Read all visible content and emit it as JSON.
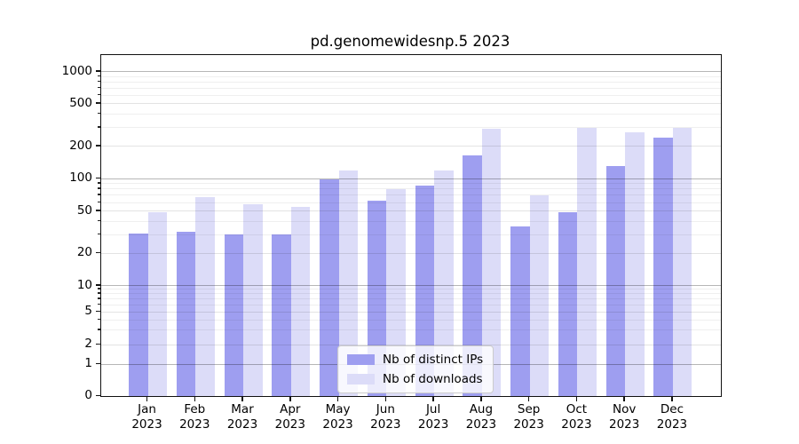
{
  "title": "pd.genomewidesnp.5 2023",
  "chart_data": {
    "type": "bar",
    "title": "pd.genomewidesnp.5 2023",
    "categories": [
      "Jan",
      "Feb",
      "Mar",
      "Apr",
      "May",
      "Jun",
      "Jul",
      "Aug",
      "Sep",
      "Oct",
      "Nov",
      "Dec"
    ],
    "year": "2023",
    "series": [
      {
        "name": "Nb of distinct IPs",
        "color": "#9e9ef0",
        "values": [
          31,
          32,
          30,
          30,
          98,
          62,
          86,
          163,
          36,
          49,
          130,
          242
        ]
      },
      {
        "name": "Nb of downloads",
        "color": "#dcdcf8",
        "values": [
          49,
          67,
          58,
          55,
          119,
          80,
          119,
          290,
          70,
          300,
          270,
          300
        ]
      }
    ],
    "y_ticks": [
      0,
      1,
      2,
      5,
      10,
      20,
      50,
      100,
      200,
      500,
      1000
    ],
    "yscale": "symlog",
    "ylim": [
      0,
      1400
    ],
    "xlabel": "",
    "ylabel": "",
    "grid": true,
    "legend_position": "lower center"
  }
}
